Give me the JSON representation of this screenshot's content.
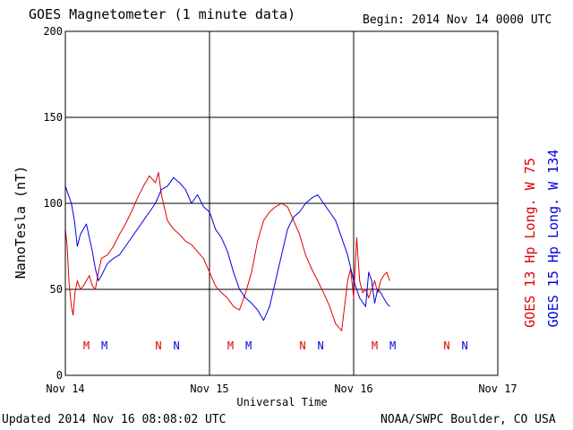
{
  "header": {
    "title": "GOES Magnetometer (1 minute data)",
    "begin": "Begin:  2014 Nov 14 0000 UTC"
  },
  "footer": {
    "updated": "Updated 2014 Nov 16 08:08:02 UTC",
    "credit": "NOAA/SWPC Boulder, CO USA"
  },
  "colors": {
    "goes13": "#e00000",
    "goes15": "#0000e0",
    "axis": "#000000"
  },
  "chart_data": {
    "type": "line",
    "xlabel": "Universal Time",
    "ylabel": "NanoTesla (nT)",
    "ylim": [
      0,
      200
    ],
    "yticks": [
      0,
      50,
      100,
      150,
      200
    ],
    "xlim": [
      0,
      72
    ],
    "xticks": [
      {
        "hour": 0,
        "label": "Nov 14"
      },
      {
        "hour": 24,
        "label": "Nov 15"
      },
      {
        "hour": 48,
        "label": "Nov 16"
      },
      {
        "hour": 72,
        "label": "Nov 17"
      }
    ],
    "grid": true,
    "legend_position": "right",
    "series": [
      {
        "name": "GOES 13 Hp  Long. W 75",
        "color": "#e00000",
        "x": [
          0,
          0.3,
          0.6,
          1.0,
          1.3,
          1.6,
          2.0,
          2.5,
          3.0,
          3.5,
          4.0,
          4.5,
          5.0,
          5.5,
          6.0,
          7.0,
          8.0,
          9.0,
          10.0,
          11.0,
          12.0,
          13.0,
          14.0,
          15.0,
          15.5,
          16.0,
          17.0,
          18.0,
          19.0,
          20.0,
          21.0,
          22.0,
          23.0,
          24.0,
          25.0,
          26.0,
          27.0,
          28.0,
          29.0,
          30.0,
          31.0,
          32.0,
          33.0,
          34.0,
          35.0,
          36.0,
          37.0,
          38.0,
          39.0,
          40.0,
          41.0,
          42.0,
          43.0,
          44.0,
          45.0,
          46.0,
          47.0,
          47.5,
          48.0,
          48.5,
          49.0,
          49.5,
          50.0,
          50.5,
          51.0,
          51.5,
          52.0,
          52.5,
          53.0,
          53.5,
          54.0
        ],
        "values": [
          85,
          75,
          55,
          40,
          35,
          48,
          55,
          50,
          52,
          55,
          58,
          52,
          50,
          60,
          68,
          70,
          75,
          82,
          88,
          95,
          103,
          110,
          116,
          112,
          118,
          105,
          90,
          85,
          82,
          78,
          76,
          72,
          68,
          60,
          52,
          48,
          45,
          40,
          38,
          48,
          60,
          78,
          90,
          95,
          98,
          100,
          98,
          90,
          82,
          70,
          62,
          55,
          48,
          40,
          30,
          26,
          55,
          62,
          45,
          80,
          55,
          48,
          50,
          45,
          50,
          55,
          48,
          55,
          58,
          60,
          55
        ]
      },
      {
        "name": "GOES 15 Hp  Long. W 134",
        "color": "#0000e0",
        "x": [
          0,
          0.5,
          1.0,
          1.5,
          2.0,
          2.5,
          3.0,
          3.5,
          4.0,
          4.5,
          5.0,
          5.5,
          6.0,
          7.0,
          8.0,
          9.0,
          10.0,
          11.0,
          12.0,
          13.0,
          14.0,
          15.0,
          16.0,
          17.0,
          18.0,
          19.0,
          20.0,
          21.0,
          22.0,
          23.0,
          24.0,
          25.0,
          26.0,
          27.0,
          28.0,
          29.0,
          30.0,
          31.0,
          32.0,
          33.0,
          34.0,
          35.0,
          36.0,
          37.0,
          38.0,
          39.0,
          40.0,
          41.0,
          42.0,
          43.0,
          44.0,
          45.0,
          46.0,
          47.0,
          48.0,
          49.0,
          50.0,
          50.5,
          51.0,
          51.5,
          52.0,
          52.5,
          53.0,
          53.5,
          54.0
        ],
        "values": [
          110,
          105,
          100,
          90,
          75,
          82,
          85,
          88,
          80,
          72,
          62,
          55,
          58,
          65,
          68,
          70,
          75,
          80,
          85,
          90,
          95,
          100,
          108,
          110,
          115,
          112,
          108,
          100,
          105,
          98,
          95,
          85,
          80,
          72,
          60,
          50,
          45,
          42,
          38,
          32,
          40,
          55,
          70,
          85,
          92,
          95,
          100,
          103,
          105,
          100,
          95,
          90,
          80,
          70,
          55,
          45,
          40,
          60,
          55,
          42,
          50,
          48,
          45,
          42,
          40
        ]
      }
    ],
    "markers": [
      {
        "hour": 3.5,
        "label": "M",
        "satellite": "GOES 13"
      },
      {
        "hour": 6.5,
        "label": "M",
        "satellite": "GOES 15"
      },
      {
        "hour": 15.5,
        "label": "N",
        "satellite": "GOES 13"
      },
      {
        "hour": 18.5,
        "label": "N",
        "satellite": "GOES 15"
      },
      {
        "hour": 27.5,
        "label": "M",
        "satellite": "GOES 13"
      },
      {
        "hour": 30.5,
        "label": "M",
        "satellite": "GOES 15"
      },
      {
        "hour": 39.5,
        "label": "N",
        "satellite": "GOES 13"
      },
      {
        "hour": 42.5,
        "label": "N",
        "satellite": "GOES 15"
      },
      {
        "hour": 51.5,
        "label": "M",
        "satellite": "GOES 13"
      },
      {
        "hour": 54.5,
        "label": "M",
        "satellite": "GOES 15"
      },
      {
        "hour": 63.5,
        "label": "N",
        "satellite": "GOES 13"
      },
      {
        "hour": 66.5,
        "label": "N",
        "satellite": "GOES 15"
      }
    ]
  }
}
